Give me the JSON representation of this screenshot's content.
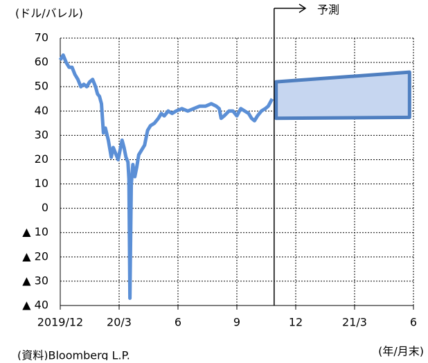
{
  "chart_data": {
    "type": "line",
    "y_unit_label": "(ドル/バレル)",
    "x_unit_label": "(年/月末)",
    "source": "(資料)Bloomberg L.P.",
    "annotation": "予測",
    "xlim": [
      0,
      18
    ],
    "xticks": [
      {
        "value": 0,
        "label": "2019/12"
      },
      {
        "value": 3,
        "label": "20/3"
      },
      6,
      9,
      12,
      {
        "value": 15,
        "label": "21/3"
      },
      {
        "value": 18,
        "label": "6"
      }
    ],
    "ylim": [
      -40,
      70
    ],
    "yticks": [
      {
        "value": -40,
        "label": "▲ 40"
      },
      {
        "value": -30,
        "label": "▲ 30"
      },
      {
        "value": -20,
        "label": "▲ 20"
      },
      {
        "value": -10,
        "label": "▲ 10"
      },
      0,
      10,
      20,
      30,
      40,
      50,
      60,
      70
    ],
    "grid": true,
    "forecast_start": 10.9,
    "series": [
      {
        "color": "#5b8fd6",
        "x": [
          0,
          0.15,
          0.3,
          0.45,
          0.6,
          0.75,
          0.9,
          1.05,
          1.2,
          1.35,
          1.5,
          1.65,
          1.8,
          1.9,
          2.0,
          2.1,
          2.2,
          2.3,
          2.45,
          2.6,
          2.7,
          2.85,
          2.95,
          3.05,
          3.15,
          3.25,
          3.35,
          3.45,
          3.5,
          3.55,
          3.62,
          3.7,
          3.8,
          3.9,
          4.0,
          4.15,
          4.3,
          4.45,
          4.6,
          4.8,
          5.0,
          5.15,
          5.3,
          5.5,
          5.7,
          5.9,
          6.2,
          6.5,
          6.8,
          7.1,
          7.4,
          7.7,
          7.95,
          8.1,
          8.2,
          8.35,
          8.6,
          8.8,
          9.0,
          9.2,
          9.4,
          9.6,
          9.75,
          9.9,
          10.05,
          10.25,
          10.45,
          10.6,
          10.8
        ],
        "values": [
          61,
          63,
          60,
          58,
          58,
          55,
          53,
          50,
          51,
          50,
          52,
          53,
          50,
          47,
          46,
          43,
          31,
          33,
          28,
          21,
          25,
          22,
          20,
          24,
          28,
          25,
          21,
          19,
          12,
          -37,
          10,
          18,
          13,
          17,
          22,
          24,
          26,
          32,
          34,
          35,
          37,
          39,
          38,
          40,
          39,
          40,
          41,
          40,
          41,
          42,
          42,
          43,
          42,
          41,
          37,
          38,
          40,
          40,
          38,
          41,
          40,
          39,
          37,
          36,
          38,
          40,
          41,
          42,
          45
        ]
      }
    ],
    "forecast": {
      "color": "#c6d6f0",
      "edge_color": "#4f7fc0",
      "x": [
        11,
        17.8
      ],
      "upper": [
        52,
        56
      ],
      "lower": [
        37,
        37.4
      ]
    }
  }
}
